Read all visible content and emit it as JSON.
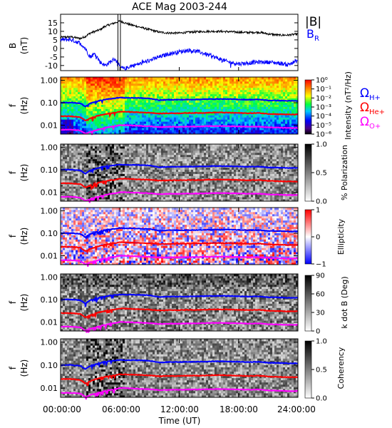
{
  "title": "ACE Mag 2003-244",
  "x_axis": {
    "label": "Time (UT)",
    "ticks": [
      "00:00:00",
      "06:00:00",
      "12:00:00",
      "18:00:00",
      "24:00:00"
    ],
    "range_hours": [
      0,
      24
    ]
  },
  "colors": {
    "B_total": "#000000",
    "B_R": "#0000ff",
    "omega_H": "#0000ff",
    "omega_He": "#ff0000",
    "omega_O": "#ff00ff"
  },
  "gyro_legend": {
    "h": {
      "base": "Ω",
      "sub": "H+"
    },
    "he": {
      "base": "Ω",
      "sub": "He+"
    },
    "o": {
      "base": "Ω",
      "sub": "O+"
    }
  },
  "chart_data": [
    {
      "type": "line",
      "panel": "magnetic-field",
      "ylabel": [
        "B",
        "(nT)"
      ],
      "ylim": [
        -13,
        20
      ],
      "yticks": [
        "15",
        "10",
        "5",
        "0",
        "-5",
        "-10"
      ],
      "ytick_values": [
        15,
        10,
        5,
        0,
        -5,
        -10
      ],
      "legend": [
        {
          "base": "|B|",
          "sub": ""
        },
        {
          "base": "B",
          "sub": "R"
        }
      ],
      "x_hours": [
        0,
        1,
        2,
        2.5,
        3,
        3.5,
        4,
        4.5,
        5,
        5.5,
        6,
        6.5,
        7,
        8,
        9,
        10,
        11,
        12,
        13,
        14,
        15,
        16,
        17,
        18,
        19,
        20,
        21,
        22,
        23,
        24
      ],
      "series": [
        {
          "name": "|B|",
          "values": [
            6.5,
            6.8,
            5.8,
            7,
            9,
            10,
            11,
            13,
            14,
            15,
            16,
            15,
            14,
            12.5,
            11,
            9.5,
            9,
            9,
            9.5,
            9.8,
            10,
            10,
            9.8,
            9.5,
            9.3,
            9.5,
            8.5,
            7.8,
            7.8,
            8.5
          ]
        },
        {
          "name": "B_R",
          "values": [
            5,
            5.2,
            3,
            0,
            -5,
            -3,
            -8,
            -10,
            -8,
            -6,
            -11,
            -12,
            -10.5,
            -9,
            -7,
            -5,
            -3,
            -2,
            -1,
            -2,
            -4,
            -6,
            -8,
            -9,
            -8.5,
            -8,
            -8,
            -8.5,
            -9.5,
            -7
          ]
        }
      ],
      "spikes_hours": [
        5.8,
        6.05
      ]
    },
    {
      "type": "heatmap",
      "panel": "intensity",
      "ylabel": [
        "f",
        "(Hz)"
      ],
      "yticks": [
        "1.00",
        "0.10",
        "0.01"
      ],
      "colorbar": {
        "label": "Intensity (nT²/Hz)",
        "ticks": [
          "10⁰",
          "10⁻¹",
          "10⁻²",
          "10⁻³",
          "10⁻⁴",
          "10⁻⁵",
          "10⁻⁶"
        ],
        "scale": "rainbow"
      }
    },
    {
      "type": "heatmap",
      "panel": "polarization",
      "ylabel": [
        "f",
        "(Hz)"
      ],
      "yticks": [
        "1.00",
        "0.10",
        "0.01"
      ],
      "colorbar": {
        "label": "% Polarization",
        "ticks": [
          "1.0",
          "0.5",
          "0.0"
        ],
        "scale": "grayscale"
      }
    },
    {
      "type": "heatmap",
      "panel": "ellipticity",
      "ylabel": [
        "f",
        "(Hz)"
      ],
      "yticks": [
        "1.00",
        "0.10",
        "0.01"
      ],
      "colorbar": {
        "label": "Ellipticity",
        "ticks": [
          "1",
          "0",
          "−1"
        ],
        "scale": "red-white-blue"
      }
    },
    {
      "type": "heatmap",
      "panel": "kdotb",
      "ylabel": [
        "f",
        "(Hz)"
      ],
      "yticks": [
        "1.00",
        "0.10",
        "0.01"
      ],
      "colorbar": {
        "label": "k dot B (Deg)",
        "ticks": [
          "90",
          "60",
          "30",
          "0"
        ],
        "scale": "grayscale"
      }
    },
    {
      "type": "heatmap",
      "panel": "coherency",
      "ylabel": [
        "f",
        "(Hz)"
      ],
      "yticks": [
        "1.00",
        "0.10",
        "0.01"
      ],
      "colorbar": {
        "label": "Coherency",
        "ticks": [
          "1.0",
          "0.5",
          "0.0"
        ],
        "scale": "grayscale"
      }
    },
    {
      "type": "line",
      "panel": "gyrofrequency-overlays",
      "yscale": "log",
      "ylim_hz": [
        0.004,
        1.4
      ],
      "x_hours": [
        0,
        1,
        2,
        2.5,
        3,
        3.5,
        4,
        4.5,
        5,
        5.5,
        6,
        6.5,
        7,
        8,
        9,
        10,
        11,
        12,
        13,
        14,
        15,
        16,
        17,
        18,
        19,
        20,
        21,
        22,
        23,
        24
      ],
      "series": [
        {
          "name": "Ω_H+",
          "values": [
            0.1,
            0.102,
            0.094,
            0.066,
            0.093,
            0.11,
            0.125,
            0.14,
            0.15,
            0.16,
            0.17,
            0.165,
            0.165,
            0.163,
            0.155,
            0.13,
            0.137,
            0.137,
            0.139,
            0.141,
            0.145,
            0.147,
            0.145,
            0.141,
            0.137,
            0.14,
            0.127,
            0.126,
            0.121,
            0.121
          ]
        },
        {
          "name": "Ω_He+",
          "values": [
            0.025,
            0.025,
            0.023,
            0.016,
            0.02,
            0.024,
            0.028,
            0.031,
            0.034,
            0.036,
            0.04,
            0.04,
            0.039,
            0.037,
            0.036,
            0.033,
            0.034,
            0.034,
            0.035,
            0.035,
            0.036,
            0.037,
            0.036,
            0.035,
            0.034,
            0.035,
            0.032,
            0.031,
            0.03,
            0.03
          ]
        },
        {
          "name": "Ω_O+",
          "values": [
            0.0062,
            0.0063,
            0.0058,
            0.0041,
            0.005,
            0.0058,
            0.0066,
            0.0075,
            0.0084,
            0.009,
            0.01,
            0.01,
            0.0098,
            0.0093,
            0.009,
            0.0082,
            0.0085,
            0.0085,
            0.0087,
            0.0088,
            0.009,
            0.0092,
            0.009,
            0.0088,
            0.0086,
            0.0087,
            0.008,
            0.0078,
            0.0075,
            0.0075
          ]
        }
      ]
    }
  ]
}
